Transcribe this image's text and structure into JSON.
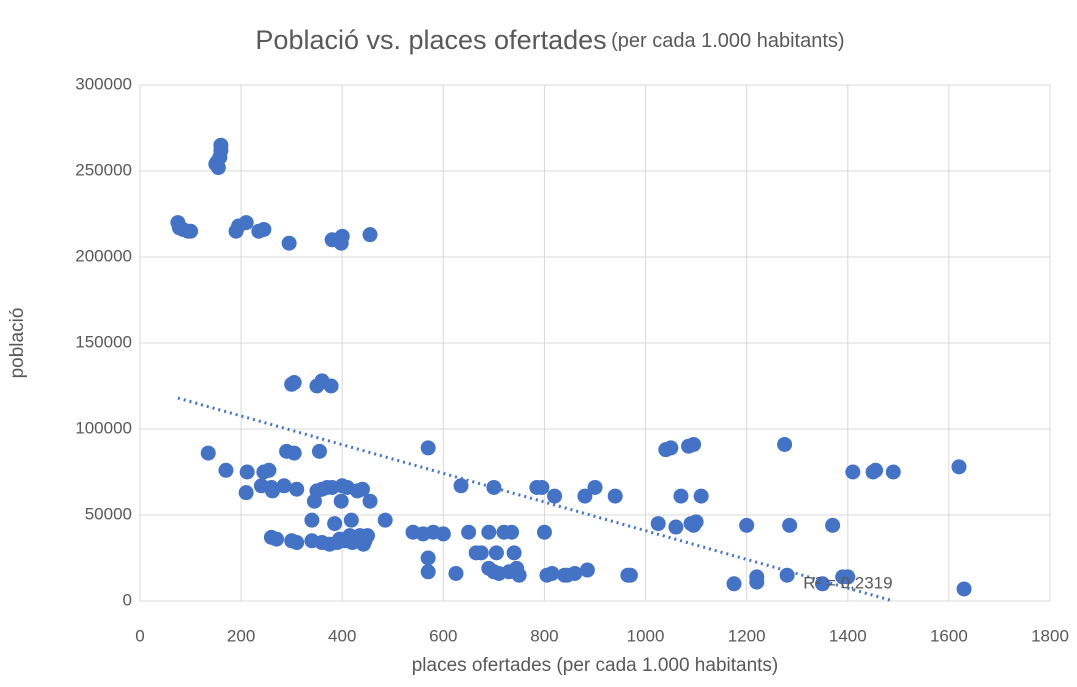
{
  "chart_data": {
    "type": "scatter",
    "title": "Població vs. places ofertades",
    "subtitle": "(per cada 1.000 habitants)",
    "x_label": "places ofertades (per cada 1.000 habitants)",
    "y_label": "població",
    "xlim": [
      0,
      1800
    ],
    "xticks": [
      0,
      200,
      400,
      600,
      800,
      1000,
      1200,
      1400,
      1600,
      1800
    ],
    "ylim": [
      0,
      300000
    ],
    "yticks": [
      0,
      50000,
      100000,
      150000,
      200000,
      250000,
      300000
    ],
    "grid": true,
    "series": [
      {
        "color": "#4472c4",
        "x": [
          152,
          155,
          158,
          160,
          160,
          150,
          75,
          78,
          85,
          95,
          100,
          190,
          195,
          210,
          235,
          245,
          295,
          380,
          398,
          400,
          455,
          300,
          305,
          350,
          360,
          378,
          135,
          170,
          210,
          212,
          240,
          245,
          255,
          260,
          262,
          260,
          270,
          285,
          290,
          300,
          305,
          310,
          310,
          340,
          340,
          345,
          350,
          355,
          360,
          360,
          370,
          375,
          380,
          385,
          390,
          395,
          398,
          400,
          405,
          410,
          415,
          418,
          420,
          425,
          430,
          435,
          440,
          442,
          445,
          450,
          455,
          485,
          540,
          560,
          570,
          570,
          570,
          580,
          600,
          625,
          635,
          650,
          665,
          675,
          690,
          690,
          700,
          700,
          705,
          710,
          720,
          730,
          735,
          740,
          745,
          750,
          785,
          795,
          800,
          805,
          815,
          820,
          840,
          845,
          860,
          880,
          885,
          900,
          940,
          965,
          970,
          1025,
          1040,
          1050,
          1060,
          1070,
          1085,
          1090,
          1095,
          1095,
          1100,
          1110,
          1175,
          1200,
          1220,
          1220,
          1275,
          1280,
          1285,
          1350,
          1370,
          1390,
          1400,
          1410,
          1450,
          1455,
          1490,
          1620,
          1630
        ],
        "y": [
          255000,
          252000,
          258000,
          262000,
          265000,
          254000,
          220000,
          217000,
          216000,
          215000,
          215000,
          215000,
          218000,
          220000,
          215000,
          216000,
          208000,
          210000,
          208000,
          212000,
          213000,
          126000,
          127000,
          125000,
          128000,
          125000,
          86000,
          76000,
          63000,
          75000,
          67000,
          75000,
          76000,
          66000,
          64000,
          37000,
          36000,
          67000,
          87000,
          35000,
          86000,
          34000,
          65000,
          35000,
          47000,
          58000,
          64000,
          87000,
          34000,
          65000,
          66000,
          33000,
          66000,
          45000,
          34000,
          36000,
          58000,
          67000,
          35000,
          66000,
          38000,
          47000,
          34000,
          36000,
          64000,
          38000,
          65000,
          33000,
          35000,
          38000,
          58000,
          47000,
          40000,
          39000,
          89000,
          25000,
          17000,
          40000,
          39000,
          16000,
          67000,
          40000,
          28000,
          28000,
          19000,
          40000,
          17000,
          66000,
          28000,
          16000,
          40000,
          17000,
          40000,
          28000,
          19000,
          15000,
          66000,
          66000,
          40000,
          15000,
          16000,
          61000,
          15000,
          15000,
          16000,
          61000,
          18000,
          66000,
          61000,
          15000,
          15000,
          45000,
          88000,
          89000,
          43000,
          61000,
          90000,
          45000,
          91000,
          44000,
          46000,
          61000,
          10000,
          44000,
          11000,
          14000,
          91000,
          15000,
          44000,
          10000,
          44000,
          14000,
          14000,
          75000,
          75000,
          76000,
          75000,
          78000,
          7000
        ]
      }
    ],
    "trendline": {
      "x": [
        75,
        1490
      ],
      "y": [
        118000,
        0
      ],
      "label": "R² = 0,2319"
    }
  }
}
